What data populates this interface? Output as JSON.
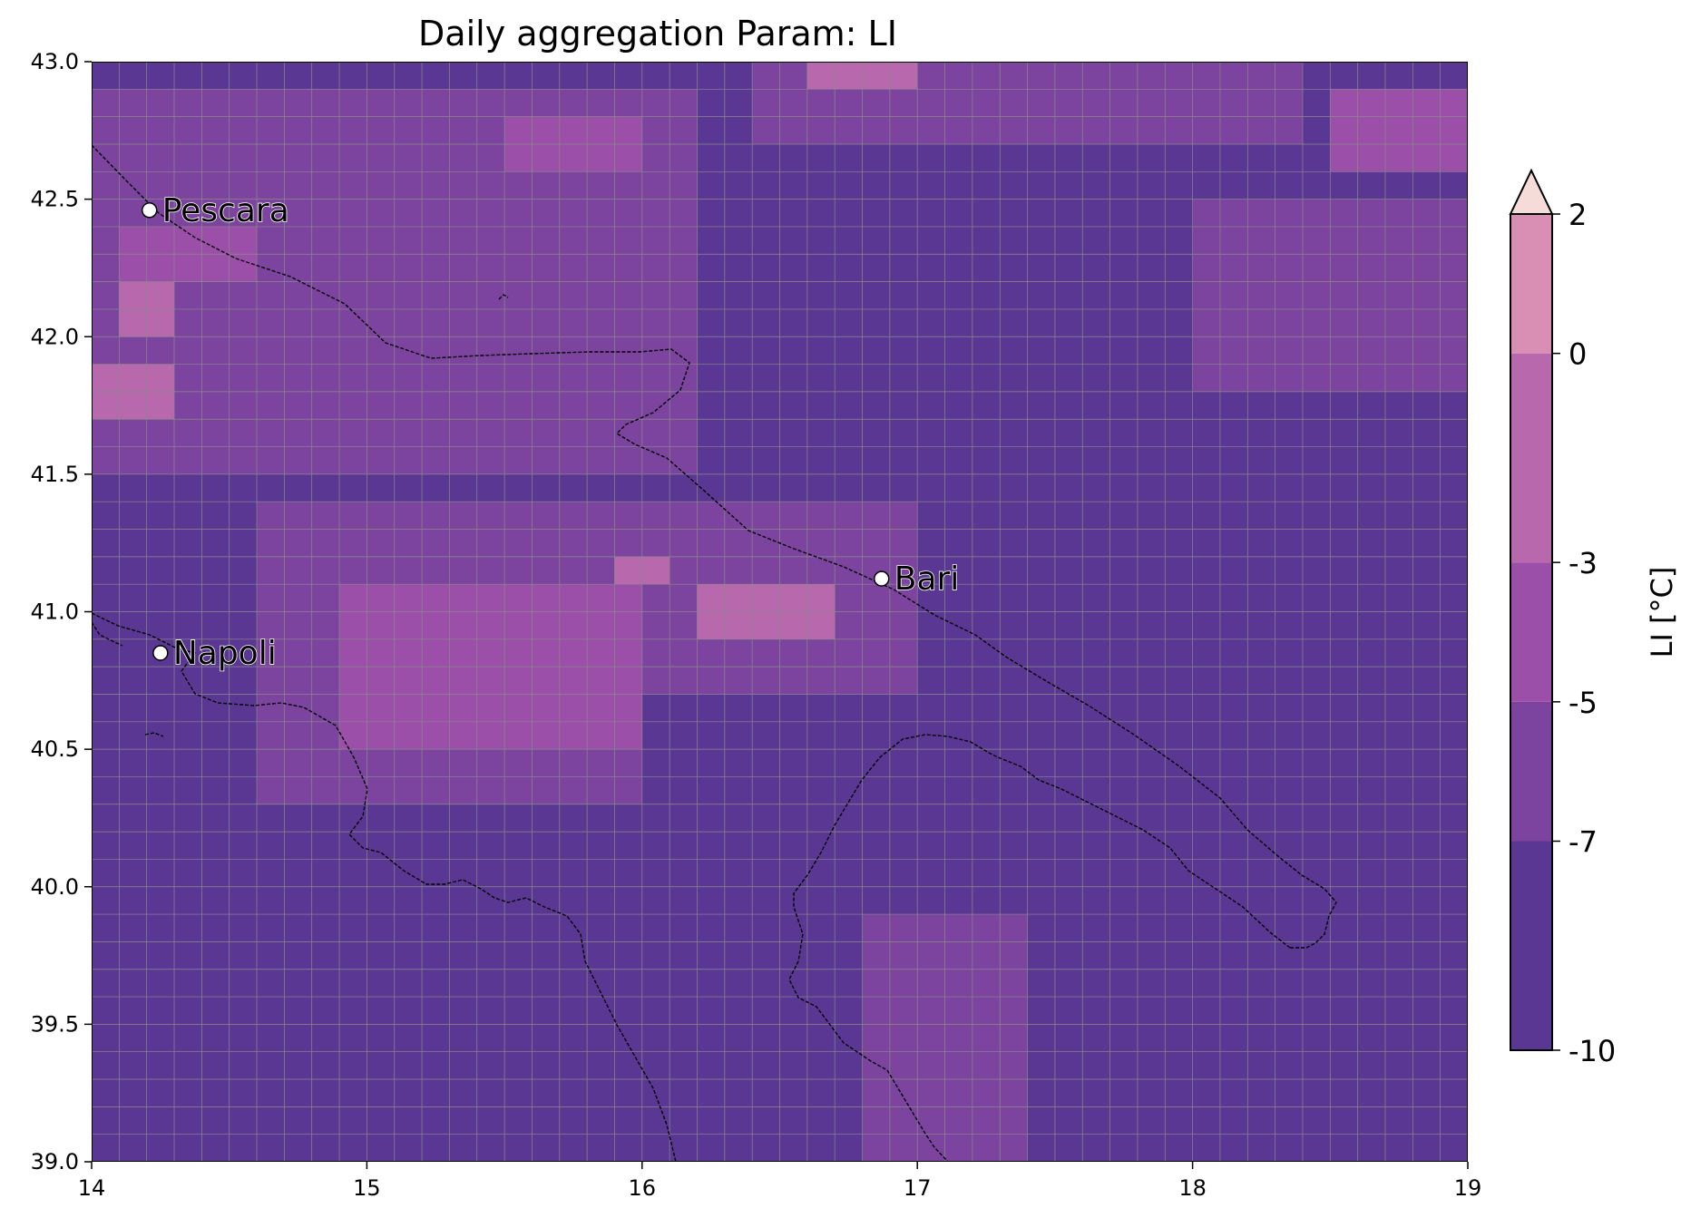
{
  "chart_data": {
    "type": "heatmap",
    "title": "Daily aggregation Param: LI",
    "xlim": [
      14,
      19
    ],
    "ylim": [
      39,
      43
    ],
    "x_ticks": [
      "14",
      "15",
      "16",
      "17",
      "18",
      "19"
    ],
    "y_ticks": [
      "39.0",
      "39.5",
      "40.0",
      "40.5",
      "41.0",
      "41.5",
      "42.0",
      "42.5",
      "43.0"
    ],
    "grid": true,
    "grid_resolution_deg": 0.1,
    "colorbar": {
      "label": "LI  [°C]",
      "placement": "right",
      "ticks": [
        "2",
        "0",
        "-3",
        "-5",
        "-7",
        "-10"
      ],
      "levels": [
        -10,
        -7,
        -5,
        -3,
        0,
        2
      ],
      "extend": "max",
      "colors": [
        "#5b3794",
        "#7c449f",
        "#9b4fa8",
        "#b868ad",
        "#d98fb4",
        "#f6dcd8"
      ]
    },
    "cities": [
      {
        "name": "Pescara",
        "lon": 14.21,
        "lat": 42.46
      },
      {
        "name": "Bari",
        "lon": 16.87,
        "lat": 41.12
      },
      {
        "name": "Napoli",
        "lon": 14.25,
        "lat": 40.85
      }
    ],
    "field_regions": [
      {
        "class": -5,
        "lon": [
          14.0,
          16.2
        ],
        "lat": [
          41.5,
          42.9
        ]
      },
      {
        "class": -5,
        "lon": [
          14.6,
          16.0
        ],
        "lat": [
          40.3,
          41.4
        ]
      },
      {
        "class": -5,
        "lon": [
          16.0,
          17.0
        ],
        "lat": [
          40.7,
          41.4
        ]
      },
      {
        "class": -5,
        "lon": [
          16.4,
          18.4
        ],
        "lat": [
          42.7,
          43.0
        ]
      },
      {
        "class": -5,
        "lon": [
          18.0,
          19.0
        ],
        "lat": [
          41.8,
          42.5
        ]
      },
      {
        "class": -5,
        "lon": [
          16.8,
          17.4
        ],
        "lat": [
          39.0,
          39.9
        ]
      },
      {
        "class": -3,
        "lon": [
          14.9,
          16.0
        ],
        "lat": [
          40.5,
          41.1
        ]
      },
      {
        "class": -3,
        "lon": [
          15.5,
          16.0
        ],
        "lat": [
          42.6,
          42.8
        ]
      },
      {
        "class": -3,
        "lon": [
          18.5,
          19.0
        ],
        "lat": [
          42.6,
          42.9
        ]
      },
      {
        "class": -3,
        "lon": [
          14.1,
          14.6
        ],
        "lat": [
          42.2,
          42.4
        ]
      },
      {
        "class": 0,
        "lon": [
          14.0,
          14.3
        ],
        "lat": [
          41.7,
          41.9
        ]
      },
      {
        "class": 0,
        "lon": [
          14.1,
          14.3
        ],
        "lat": [
          42.0,
          42.2
        ]
      },
      {
        "class": 0,
        "lon": [
          16.6,
          17.0
        ],
        "lat": [
          42.9,
          43.0
        ]
      },
      {
        "class": 0,
        "lon": [
          16.2,
          16.7
        ],
        "lat": [
          40.9,
          41.1
        ]
      },
      {
        "class": 0,
        "lon": [
          15.9,
          16.1
        ],
        "lat": [
          41.1,
          41.2
        ]
      }
    ]
  }
}
